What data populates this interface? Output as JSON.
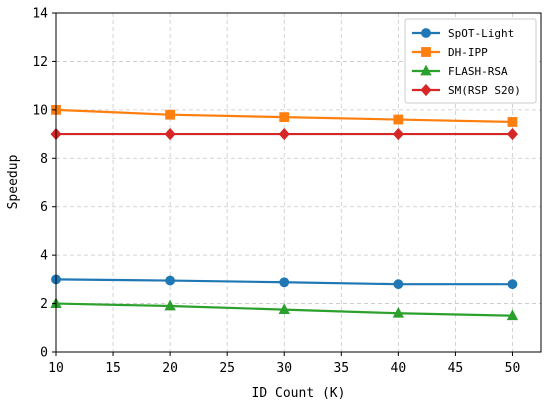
{
  "chart_data": {
    "type": "line",
    "xlabel": "ID Count (K)",
    "ylabel": "Speedup",
    "xlim": [
      10,
      52.5
    ],
    "ylim": [
      0,
      14
    ],
    "xticks": [
      10,
      15,
      20,
      25,
      30,
      35,
      40,
      45,
      50
    ],
    "yticks": [
      0,
      2,
      4,
      6,
      8,
      10,
      12,
      14
    ],
    "grid": true,
    "legend_position": "top-right",
    "x": [
      10,
      20,
      30,
      40,
      50
    ],
    "series": [
      {
        "name": "SpOT-Light",
        "color": "#1f77b4",
        "marker": "circle",
        "values": [
          3.0,
          2.95,
          2.88,
          2.8,
          2.8
        ]
      },
      {
        "name": "DH-IPP",
        "color": "#ff7f0e",
        "marker": "square",
        "values": [
          10.0,
          9.8,
          9.7,
          9.6,
          9.5
        ]
      },
      {
        "name": "FLASH-RSA",
        "color": "#2ca02c",
        "marker": "triangle",
        "values": [
          2.0,
          1.9,
          1.75,
          1.6,
          1.5
        ]
      },
      {
        "name": "SM(RSP S20)",
        "color": "#d62728",
        "marker": "diamond",
        "values": [
          9.0,
          9.0,
          9.0,
          9.0,
          9.0
        ]
      }
    ]
  }
}
